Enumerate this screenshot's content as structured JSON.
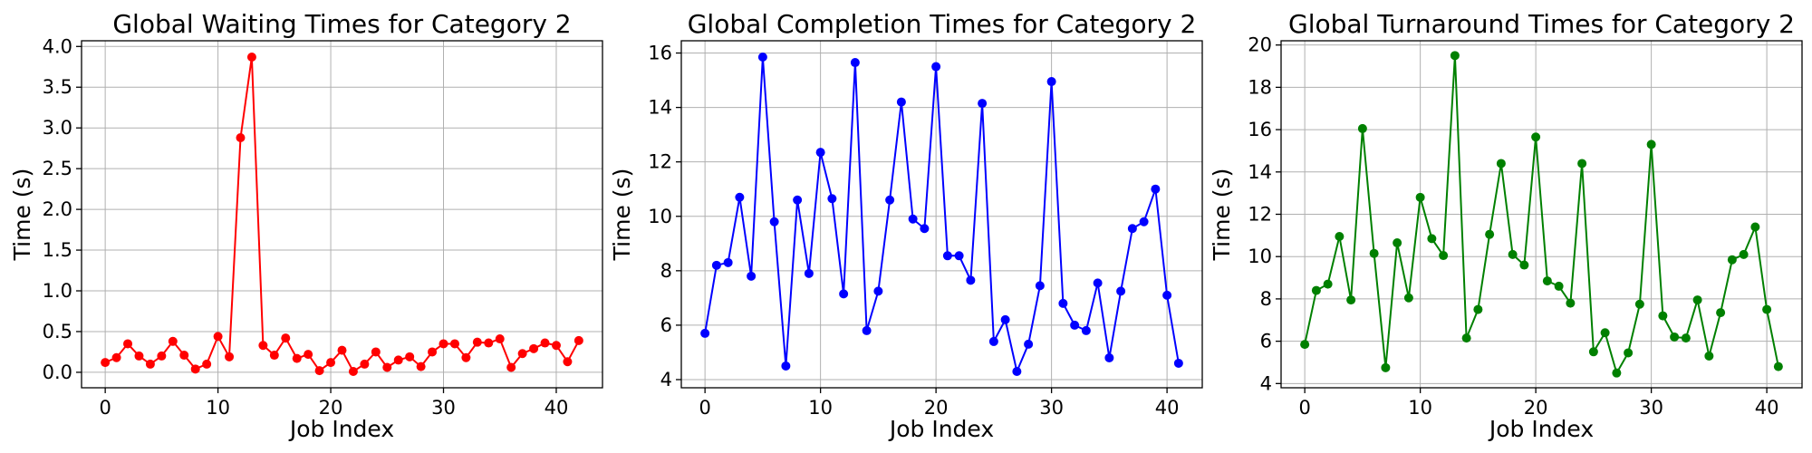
{
  "chart_data": [
    {
      "type": "line",
      "title": "Global Waiting Times for Category 2",
      "xlabel": "Job Index",
      "ylabel": "Time (s)",
      "xlim": [
        -2.1,
        44.1
      ],
      "ylim": [
        -0.19,
        4.07
      ],
      "xticks": [
        0,
        10,
        20,
        30,
        40
      ],
      "xtick_labels": [
        "0",
        "10",
        "20",
        "30",
        "40"
      ],
      "yticks": [
        0.0,
        0.5,
        1.0,
        1.5,
        2.0,
        2.5,
        3.0,
        3.5,
        4.0
      ],
      "ytick_labels": [
        "0.0",
        "0.5",
        "1.0",
        "1.5",
        "2.0",
        "2.5",
        "3.0",
        "3.5",
        "4.0"
      ],
      "grid": true,
      "color": "#ff0000",
      "x": [
        0,
        1,
        2,
        3,
        4,
        5,
        6,
        7,
        8,
        9,
        10,
        11,
        12,
        13,
        14,
        15,
        16,
        17,
        18,
        19,
        20,
        21,
        22,
        23,
        24,
        25,
        26,
        27,
        28,
        29,
        30,
        31,
        32,
        33,
        34,
        35,
        36,
        37,
        38,
        39,
        40,
        41,
        42
      ],
      "y": [
        0.12,
        0.18,
        0.35,
        0.2,
        0.1,
        0.2,
        0.38,
        0.21,
        0.04,
        0.1,
        0.44,
        0.19,
        2.88,
        3.87,
        0.33,
        0.21,
        0.42,
        0.17,
        0.22,
        0.02,
        0.12,
        0.27,
        0.01,
        0.1,
        0.25,
        0.06,
        0.15,
        0.19,
        0.07,
        0.25,
        0.35,
        0.35,
        0.18,
        0.37,
        0.36,
        0.41,
        0.06,
        0.23,
        0.29,
        0.36,
        0.33,
        0.13,
        0.39
      ]
    },
    {
      "type": "line",
      "title": "Global Completion Times for Category 2",
      "xlabel": "Job Index",
      "ylabel": "Time (s)",
      "xlim": [
        -2.05,
        43.05
      ],
      "ylim": [
        3.7,
        16.45
      ],
      "xticks": [
        0,
        10,
        20,
        30,
        40
      ],
      "xtick_labels": [
        "0",
        "10",
        "20",
        "30",
        "40"
      ],
      "yticks": [
        4,
        6,
        8,
        10,
        12,
        14,
        16
      ],
      "ytick_labels": [
        "4",
        "6",
        "8",
        "10",
        "12",
        "14",
        "16"
      ],
      "grid": true,
      "color": "#0000ff",
      "x": [
        0,
        1,
        2,
        3,
        4,
        5,
        6,
        7,
        8,
        9,
        10,
        11,
        12,
        13,
        14,
        15,
        16,
        17,
        18,
        19,
        20,
        21,
        22,
        23,
        24,
        25,
        26,
        27,
        28,
        29,
        30,
        31,
        32,
        33,
        34,
        35,
        36,
        37,
        38,
        39,
        40,
        41
      ],
      "y": [
        5.7,
        8.2,
        8.3,
        10.7,
        7.8,
        15.85,
        9.8,
        4.5,
        10.6,
        7.9,
        12.35,
        10.65,
        7.15,
        15.65,
        5.8,
        7.25,
        10.6,
        14.2,
        9.9,
        9.55,
        15.5,
        8.55,
        8.55,
        7.65,
        14.15,
        5.4,
        6.2,
        4.3,
        5.3,
        7.45,
        14.95,
        6.8,
        6.0,
        5.8,
        7.55,
        4.8,
        7.25,
        9.55,
        9.8,
        11.0,
        7.1,
        4.6
      ]
    },
    {
      "type": "line",
      "title": "Global Turnaround Times for Category 2",
      "xlabel": "Job Index",
      "ylabel": "Time (s)",
      "xlim": [
        -2.05,
        43.05
      ],
      "ylim": [
        3.8,
        20.2
      ],
      "xticks": [
        0,
        10,
        20,
        30,
        40
      ],
      "xtick_labels": [
        "0",
        "10",
        "20",
        "30",
        "40"
      ],
      "yticks": [
        4,
        6,
        8,
        10,
        12,
        14,
        16,
        18,
        20
      ],
      "ytick_labels": [
        "4",
        "6",
        "8",
        "10",
        "12",
        "14",
        "16",
        "18",
        "20"
      ],
      "grid": true,
      "color": "#008000",
      "x": [
        0,
        1,
        2,
        3,
        4,
        5,
        6,
        7,
        8,
        9,
        10,
        11,
        12,
        13,
        14,
        15,
        16,
        17,
        18,
        19,
        20,
        21,
        22,
        23,
        24,
        25,
        26,
        27,
        28,
        29,
        30,
        31,
        32,
        33,
        34,
        35,
        36,
        37,
        38,
        39,
        40,
        41
      ],
      "y": [
        5.85,
        8.4,
        8.7,
        10.95,
        7.95,
        16.05,
        10.15,
        4.75,
        10.65,
        8.05,
        12.8,
        10.85,
        10.05,
        19.5,
        6.15,
        7.5,
        11.05,
        14.4,
        10.1,
        9.6,
        15.65,
        8.85,
        8.6,
        7.8,
        14.4,
        5.5,
        6.4,
        4.5,
        5.45,
        7.75,
        15.3,
        7.2,
        6.2,
        6.15,
        7.95,
        5.3,
        7.35,
        9.85,
        10.1,
        11.4,
        7.5,
        4.8
      ]
    }
  ]
}
